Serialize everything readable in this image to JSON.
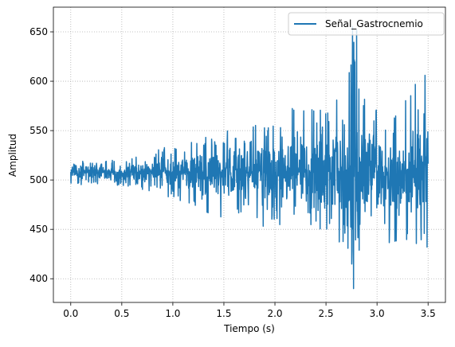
{
  "chart_data": {
    "type": "line",
    "title": "",
    "xlabel": "Tiempo (s)",
    "ylabel": "Amplitud",
    "xlim": [
      -0.17,
      3.67
    ],
    "ylim": [
      376,
      675
    ],
    "xticks": [
      0.0,
      0.5,
      1.0,
      1.5,
      2.0,
      2.5,
      3.0,
      3.5
    ],
    "xtick_labels": [
      "0.0",
      "0.5",
      "1.0",
      "1.5",
      "2.0",
      "2.5",
      "3.0",
      "3.5"
    ],
    "yticks": [
      400,
      450,
      500,
      550,
      600,
      650
    ],
    "ytick_labels": [
      "400",
      "450",
      "500",
      "550",
      "600",
      "650"
    ],
    "grid": true,
    "grid_style": "dotted",
    "legend_position": "upper right",
    "series": [
      {
        "name": "Señal_Gastrocnemio",
        "color": "#1f77b4",
        "x_start": 0.0,
        "x_end": 3.5,
        "baseline": 508,
        "envelope_x": [
          0.0,
          0.4,
          0.6,
          0.8,
          1.0,
          1.2,
          1.4,
          1.6,
          1.8,
          2.0,
          2.2,
          2.4,
          2.6,
          2.7,
          2.8,
          2.9,
          3.0,
          3.2,
          3.4,
          3.5
        ],
        "envelope_max": [
          520,
          520,
          522,
          528,
          538,
          542,
          545,
          555,
          560,
          565,
          575,
          578,
          585,
          600,
          655,
          580,
          575,
          570,
          606,
          583
        ],
        "envelope_min": [
          495,
          495,
          492,
          488,
          480,
          475,
          460,
          465,
          455,
          450,
          445,
          440,
          430,
          420,
          390,
          425,
          423,
          435,
          432,
          432
        ],
        "peaks": [
          {
            "x": 2.76,
            "y": 655
          },
          {
            "x": 2.77,
            "y": 390
          },
          {
            "x": 3.47,
            "y": 606
          },
          {
            "x": 3.49,
            "y": 432
          }
        ]
      }
    ]
  }
}
